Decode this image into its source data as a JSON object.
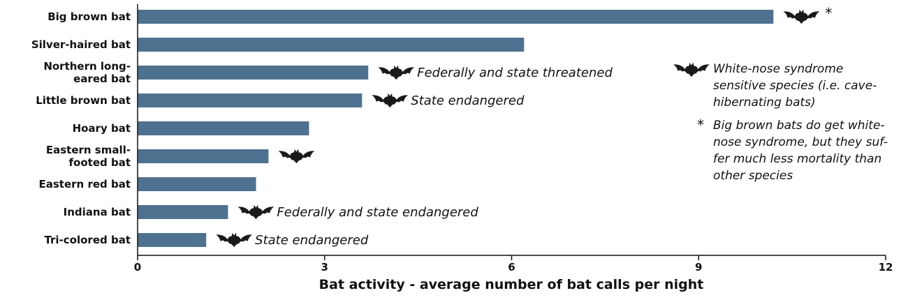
{
  "chart_data": {
    "type": "bar",
    "orientation": "horizontal",
    "title": "",
    "xlabel": "Bat activity - average number of bat calls per night",
    "ylabel": "",
    "xlim": [
      0,
      12
    ],
    "xticks": [
      "0",
      "3",
      "6",
      "9",
      "12"
    ],
    "grid": false,
    "bar_color": "#4f7190",
    "icon_color": "#1a1a1a",
    "categories": [
      "Big brown bat",
      "Silver-haired bat",
      "Northern long-eared bat",
      "Little brown bat",
      "Hoary bat",
      "Eastern small-footed bat",
      "Eastern red bat",
      "Indiana bat",
      "Tri-colored bat"
    ],
    "category_label_lines": [
      [
        "Big brown bat"
      ],
      [
        "Silver-haired bat"
      ],
      [
        "Northern long-",
        "eared bat"
      ],
      [
        "Little brown bat"
      ],
      [
        "Hoary bat"
      ],
      [
        "Eastern small-",
        "footed bat"
      ],
      [
        "Eastern red bat"
      ],
      [
        "Indiana bat"
      ],
      [
        "Tri-colored bat"
      ]
    ],
    "values": [
      10.2,
      6.2,
      3.7,
      3.6,
      2.75,
      2.1,
      1.9,
      1.45,
      1.1
    ],
    "annotations": [
      {
        "category": "Big brown bat",
        "bat_icon": true,
        "asterisk": "*",
        "text": ""
      },
      {
        "category": "Silver-haired bat",
        "bat_icon": false,
        "asterisk": "",
        "text": ""
      },
      {
        "category": "Northern long-eared bat",
        "bat_icon": true,
        "asterisk": "",
        "text": "Federally and state threatened"
      },
      {
        "category": "Little brown bat",
        "bat_icon": true,
        "asterisk": "",
        "text": "State endangered"
      },
      {
        "category": "Hoary bat",
        "bat_icon": false,
        "asterisk": "",
        "text": ""
      },
      {
        "category": "Eastern small-footed bat",
        "bat_icon": true,
        "asterisk": "",
        "text": ""
      },
      {
        "category": "Eastern red bat",
        "bat_icon": false,
        "asterisk": "",
        "text": ""
      },
      {
        "category": "Indiana bat",
        "bat_icon": true,
        "asterisk": "",
        "text": "Federally and state endangered"
      },
      {
        "category": "Tri-colored bat",
        "bat_icon": true,
        "asterisk": "",
        "text": "State endangered"
      }
    ],
    "legend": {
      "placement": "right",
      "items": [
        {
          "marker": "bat-icon",
          "lines": [
            "White-nose syndrome",
            "sensitive species (i.e. cave-",
            "hibernating bats)"
          ]
        },
        {
          "marker": "*",
          "lines": [
            "Big brown bats do get white-",
            "nose syndrome, but they suf-",
            "fer much less mortality than",
            "other species"
          ]
        }
      ]
    }
  }
}
